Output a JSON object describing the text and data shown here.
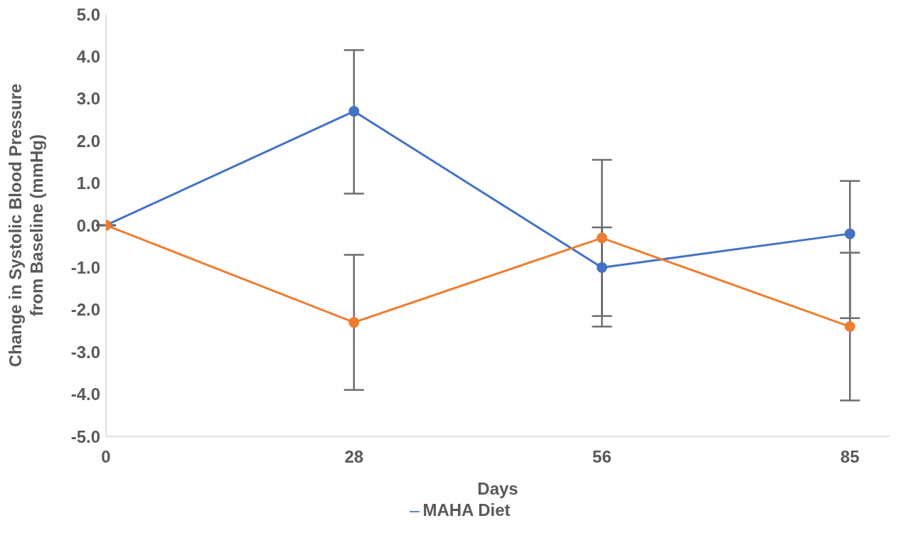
{
  "chart_data": {
    "type": "line",
    "xlabel": "Days",
    "ylabel": "Change in Systolic Blood Pressure from Baseline (mmHg)",
    "categories": [
      "0",
      "28",
      "56",
      "85"
    ],
    "series": [
      {
        "name": "MAHA Diet",
        "color": "#4472c4",
        "values": [
          0,
          2.7,
          -1.0,
          -0.2
        ],
        "errors": [
          null,
          [
            0.75,
            4.15
          ],
          [
            -2.4,
            -0.05
          ],
          [
            -2.2,
            1.05
          ]
        ]
      },
      {
        "color": "#ed7d31",
        "values": [
          0,
          -2.3,
          -0.3,
          -2.4
        ],
        "errors": [
          null,
          1.6,
          1.85,
          1.75
        ]
      }
    ],
    "ylim": [
      -5,
      5
    ],
    "yticks": [
      {
        "value": -5,
        "label": "-5.0"
      },
      {
        "value": -4,
        "label": "-4.0"
      },
      {
        "value": -3,
        "label": "-3.0"
      },
      {
        "value": -2,
        "label": "-2.0"
      },
      {
        "value": -1,
        "label": "-1.0"
      },
      {
        "value": 0,
        "label": "0.0"
      },
      {
        "value": 1,
        "label": "1.0"
      },
      {
        "value": 2,
        "label": "2.0"
      },
      {
        "value": 3,
        "label": "3.0"
      },
      {
        "value": 4,
        "label": "4.0"
      },
      {
        "value": 5,
        "label": "5.0"
      }
    ],
    "grid": false,
    "legend": "bottom",
    "marker": "circle",
    "line_style": "solid"
  }
}
